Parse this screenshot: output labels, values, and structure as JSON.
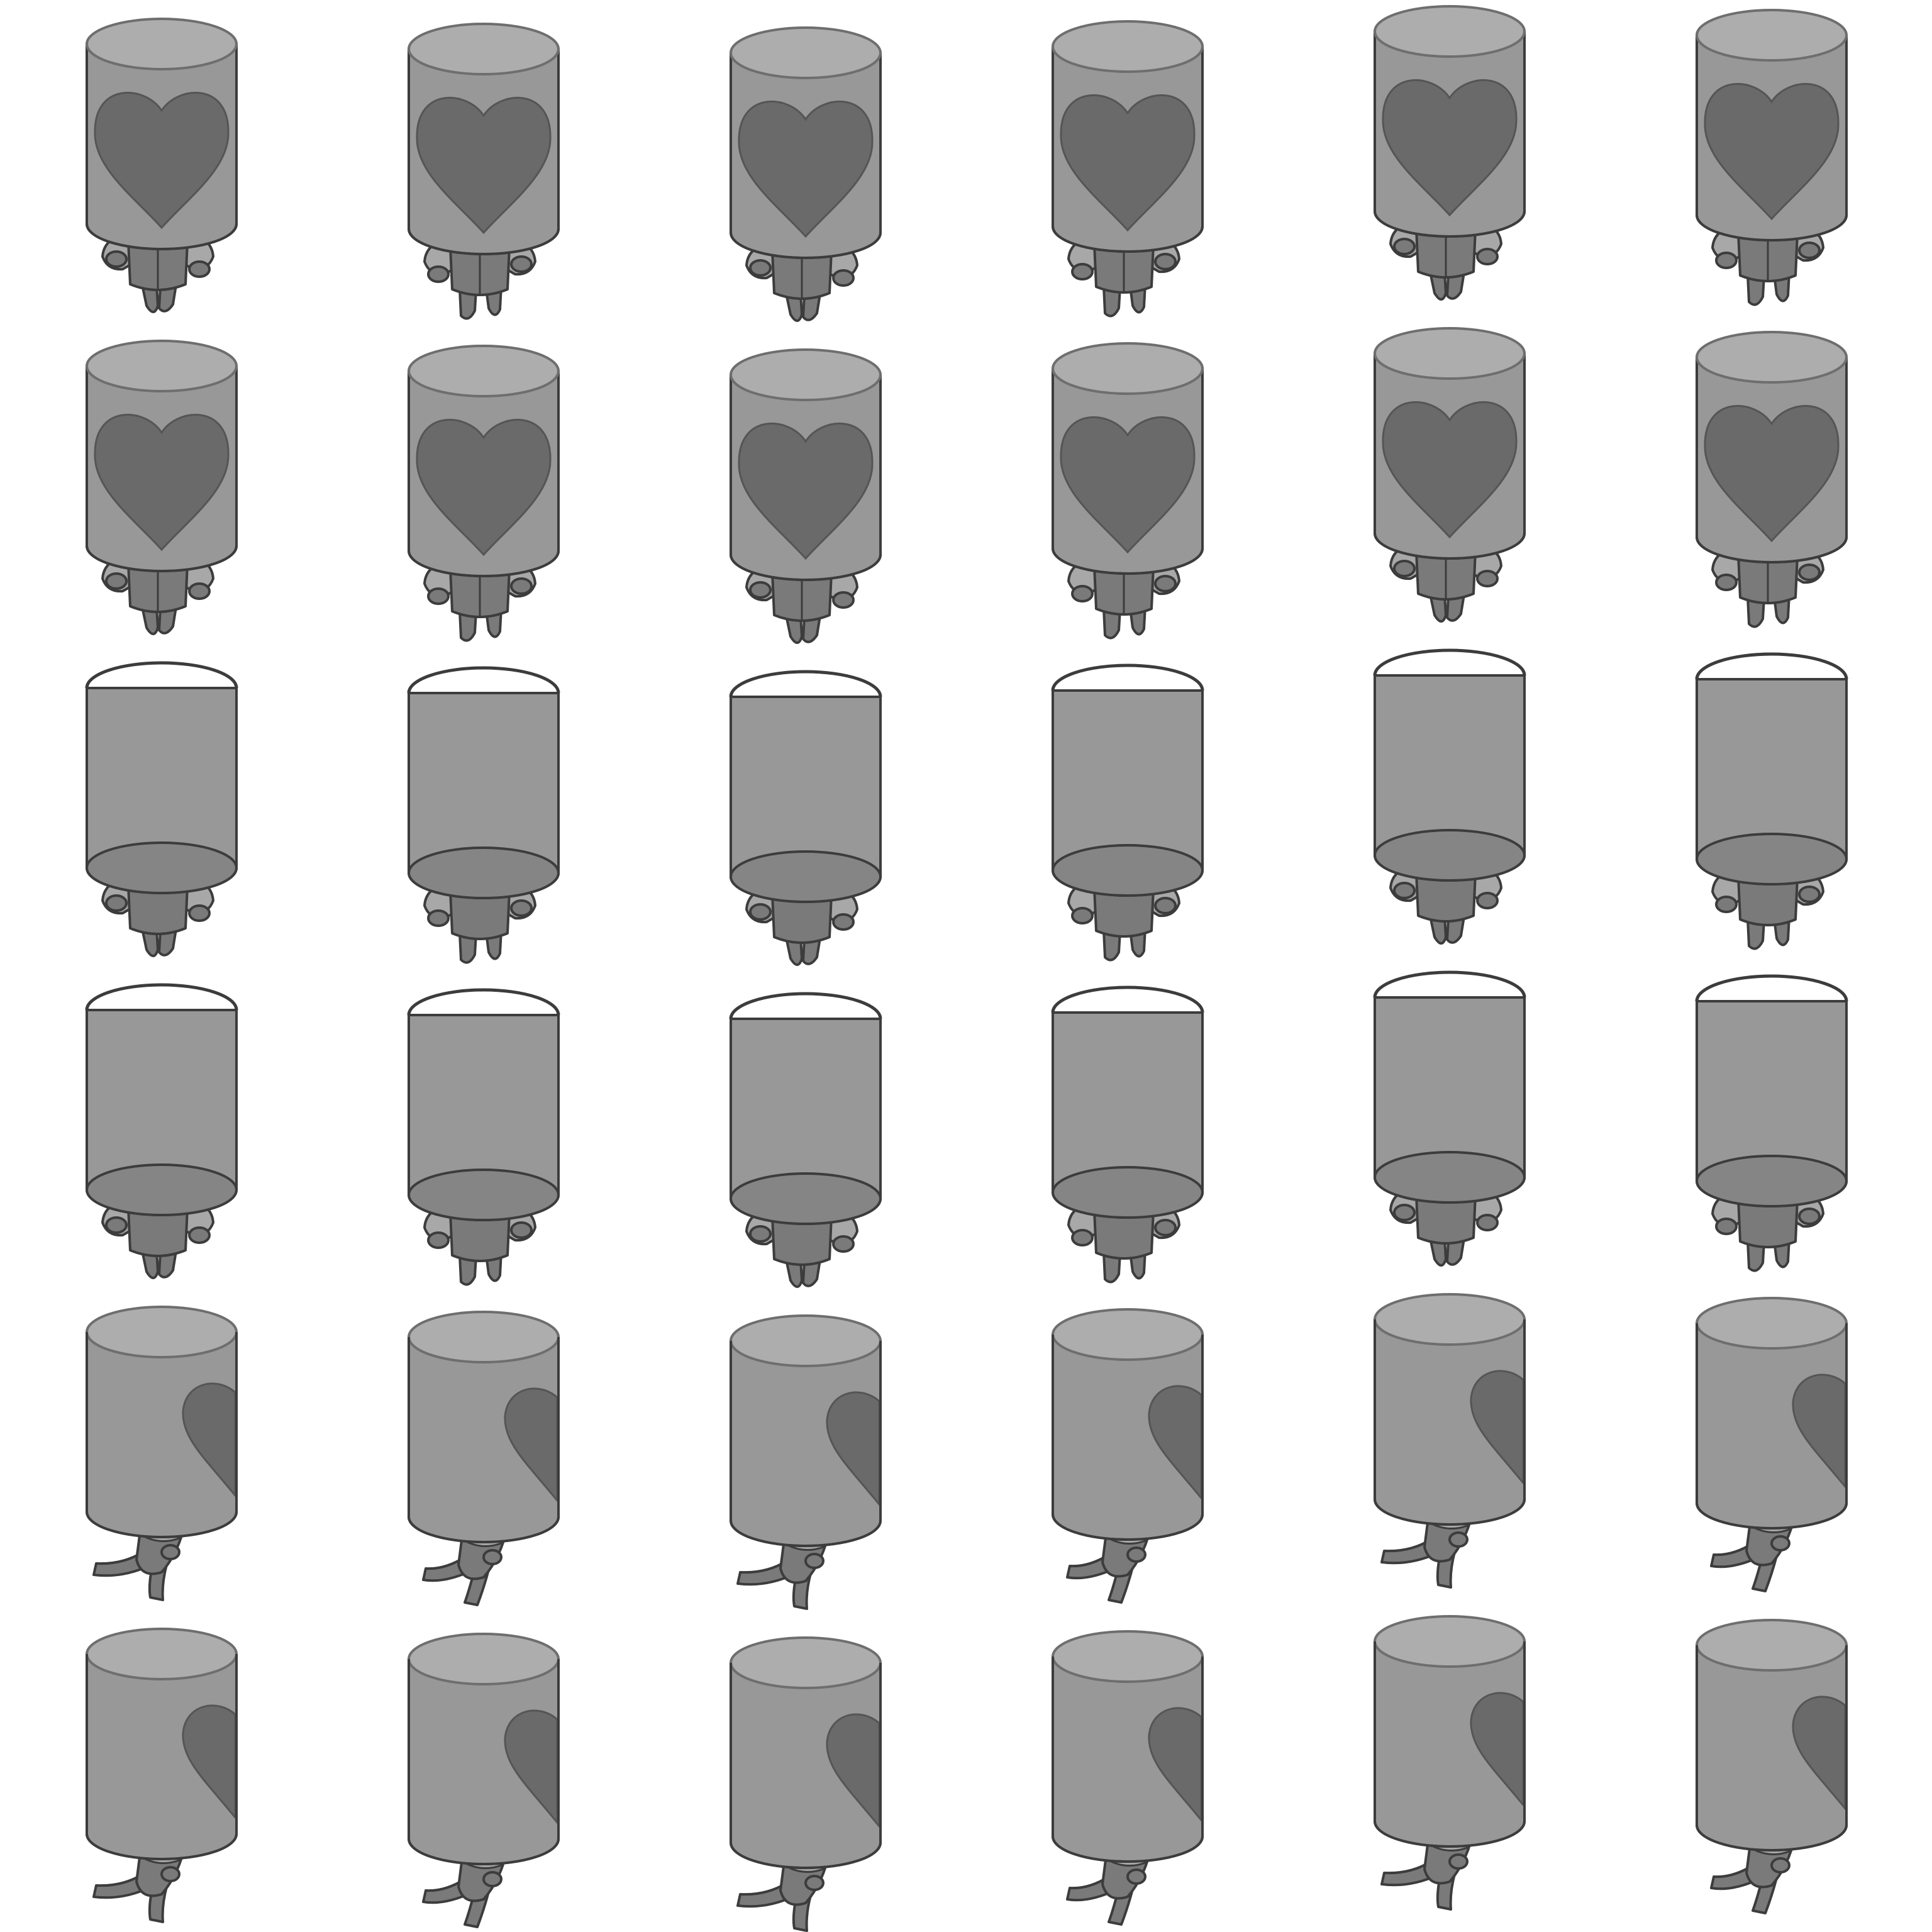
{
  "sprite_sheet": {
    "columns": 6,
    "rows": 6,
    "colors": {
      "body": "#989898",
      "body_dark": "#858585",
      "lid": "#adadad",
      "outline": "#3c3c3c",
      "heart": "#6a6a6a",
      "limb": "#7a7a7a",
      "limb_light": "#a8a8a8",
      "background": "#ffffff"
    },
    "rows_data": [
      {
        "name": "front-walk-a",
        "view": "front"
      },
      {
        "name": "front-walk-b",
        "view": "front"
      },
      {
        "name": "back-walk-a",
        "view": "back"
      },
      {
        "name": "back-walk-b",
        "view": "back"
      },
      {
        "name": "side-walk-a",
        "view": "side"
      },
      {
        "name": "side-walk-b",
        "view": "side"
      }
    ],
    "frame_pose": [
      {
        "bob": 0,
        "step": -1
      },
      {
        "bob": 8,
        "step": 1
      },
      {
        "bob": 14,
        "step": -1
      },
      {
        "bob": 4,
        "step": 1
      },
      {
        "bob": -20,
        "step": -1
      },
      {
        "bob": -14,
        "step": 1
      }
    ]
  }
}
